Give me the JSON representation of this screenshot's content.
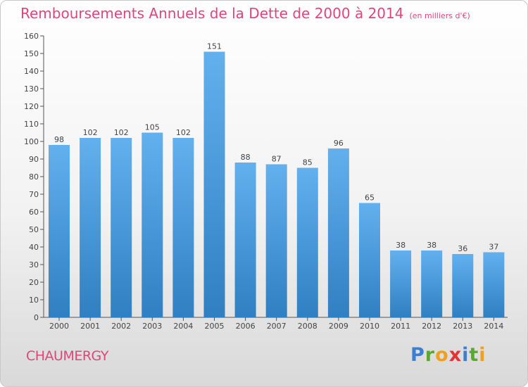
{
  "header": {
    "title": "Remboursements Annuels de la Dette de 2000 à 2014",
    "subtitle": "(en milliers d'€)"
  },
  "commune": "CHAUMERGY",
  "brand": {
    "letters": [
      {
        "char": "P",
        "color": "#3a7fd0"
      },
      {
        "char": "r",
        "color": "#5aa832"
      },
      {
        "char": "o",
        "color": "#f0a020"
      },
      {
        "char": "x",
        "color": "#e03535"
      },
      {
        "char": "i",
        "color": "#3a7fd0"
      },
      {
        "char": "t",
        "color": "#5aa832"
      },
      {
        "char": "i",
        "color": "#f0a020"
      }
    ]
  },
  "chart_data": {
    "type": "bar",
    "categories": [
      "2000",
      "2001",
      "2002",
      "2003",
      "2004",
      "2005",
      "2006",
      "2007",
      "2008",
      "2009",
      "2010",
      "2011",
      "2012",
      "2013",
      "2014"
    ],
    "values": [
      98,
      102,
      102,
      105,
      102,
      151,
      88,
      87,
      85,
      96,
      65,
      38,
      38,
      36,
      37
    ],
    "ylim": [
      0,
      160
    ],
    "yticks": [
      0,
      10,
      20,
      30,
      40,
      50,
      60,
      70,
      80,
      90,
      100,
      110,
      120,
      130,
      140,
      150,
      160
    ],
    "grid": false,
    "bar_color_top": "#63b0ee",
    "bar_color_bottom": "#2f7fc2"
  }
}
